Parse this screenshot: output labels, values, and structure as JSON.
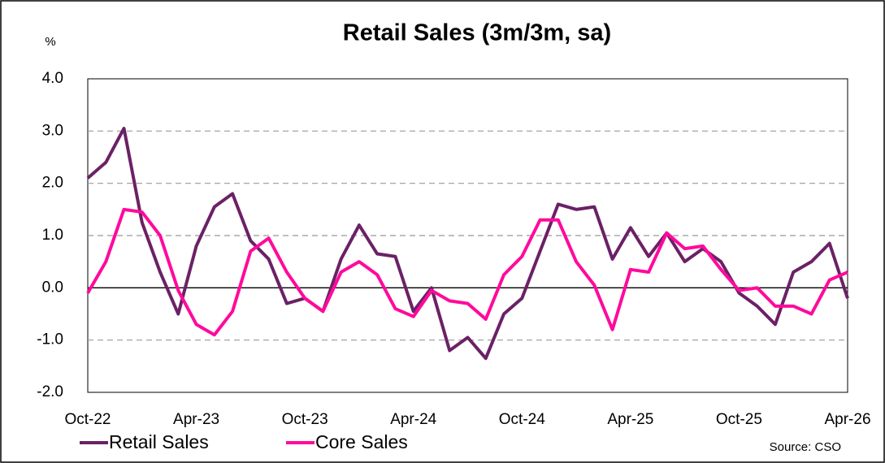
{
  "chart_data": {
    "type": "line",
    "title": "Retail Sales (3m/3m, sa)",
    "y_label": "%",
    "source": "Source: CSO",
    "categories": [
      "Oct-22",
      null,
      null,
      null,
      null,
      null,
      "Apr-23",
      null,
      null,
      null,
      null,
      null,
      "Oct-23",
      null,
      null,
      null,
      null,
      null,
      "Apr-24",
      null,
      null,
      null,
      null,
      null,
      "Oct-24",
      null,
      null,
      null,
      null,
      null,
      "Apr-25",
      null,
      null,
      null,
      null,
      null,
      "Oct-25",
      null,
      null,
      null,
      null,
      null,
      "Apr-26"
    ],
    "series": [
      {
        "name": "Retail Sales",
        "color": "#6b2166",
        "values": [
          2.1,
          2.4,
          3.05,
          1.25,
          0.3,
          -0.5,
          0.8,
          1.55,
          1.8,
          0.9,
          0.55,
          -0.3,
          -0.2,
          -0.45,
          0.55,
          1.2,
          0.65,
          0.6,
          -0.45,
          0.0,
          -1.2,
          -0.95,
          -1.35,
          -0.5,
          -0.2,
          0.7,
          1.6,
          1.5,
          1.55,
          0.55,
          1.15,
          0.6,
          1.05,
          0.5,
          0.75,
          0.5,
          -0.1,
          -0.35,
          -0.7,
          0.3,
          0.5,
          0.85,
          -0.2
        ]
      },
      {
        "name": "Core Sales",
        "color": "#ff0a9c",
        "values": [
          -0.1,
          0.5,
          1.5,
          1.45,
          1.0,
          -0.05,
          -0.7,
          -0.9,
          -0.45,
          0.7,
          0.95,
          0.3,
          -0.2,
          -0.45,
          0.3,
          0.5,
          0.25,
          -0.4,
          -0.55,
          -0.05,
          -0.25,
          -0.3,
          -0.6,
          0.25,
          0.6,
          1.3,
          1.3,
          0.5,
          0.05,
          -0.8,
          0.35,
          0.3,
          1.05,
          0.75,
          0.8,
          0.35,
          -0.05,
          0.0,
          -0.35,
          -0.35,
          -0.5,
          0.15,
          0.3
        ]
      }
    ],
    "ylim": [
      -2,
      4
    ],
    "yticks": [
      {
        "value": -2,
        "label": "-2.0"
      },
      {
        "value": -1,
        "label": "-1.0"
      },
      {
        "value": 0,
        "label": "0.0"
      },
      {
        "value": 1,
        "label": "1.0"
      },
      {
        "value": 2,
        "label": "2.0"
      },
      {
        "value": 3,
        "label": "3.0"
      },
      {
        "value": 4,
        "label": "4.0"
      }
    ],
    "grid": true,
    "legend": "bottom-left"
  }
}
